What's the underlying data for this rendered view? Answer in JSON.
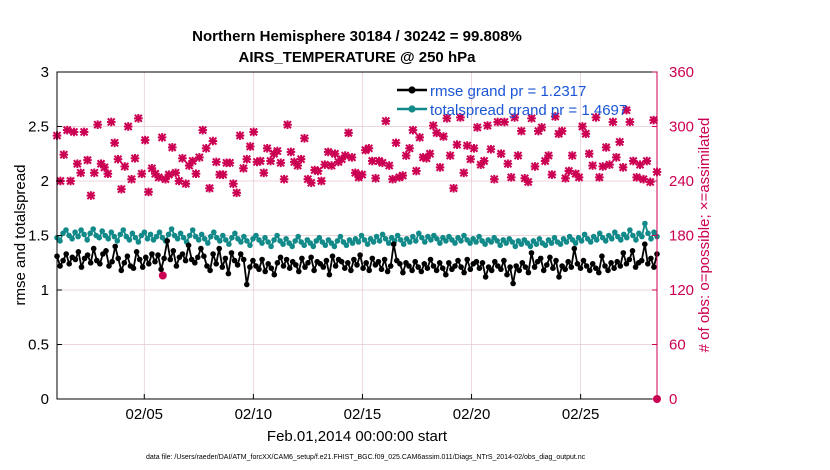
{
  "chart_data": {
    "type": "line",
    "title_line1": "Northern Hemisphere 30184 / 30242 = 99.808%",
    "title_line2": "AIRS_TEMPERATURE @ 250 hPa",
    "xlabel": "Feb.01,2014 00:00:00 start",
    "ylabel_left": "rmse and totalspread",
    "ylabel_right": "# of obs: o=possible; ×=assimilated",
    "footer": "data file: /Users/raeder/DAI/ATM_forcXX/CAM6_setup/f.e21.FHIST_BGC.f09_025.CAM6assim.011/Diags_NTrS_2014-02/obs_diag_output.nc",
    "x_range_days": [
      1,
      28.5
    ],
    "x_ticks": [
      {
        "label": "02/05",
        "day": 5
      },
      {
        "label": "02/10",
        "day": 10
      },
      {
        "label": "02/15",
        "day": 15
      },
      {
        "label": "02/20",
        "day": 20
      },
      {
        "label": "02/25",
        "day": 25
      }
    ],
    "ylim_left": [
      0,
      3
    ],
    "y_ticks_left": [
      "0",
      "0.5",
      "1",
      "1.5",
      "2",
      "2.5",
      "3"
    ],
    "ylim_right": [
      0,
      360
    ],
    "y_ticks_right": [
      "0",
      "60",
      "120",
      "180",
      "240",
      "300",
      "360"
    ],
    "legend": [
      {
        "name": "rmse grand pr = 1.2317",
        "color": "#000000"
      },
      {
        "name": "totalspread grand pr = 1.4697",
        "color": "#138a8a"
      }
    ],
    "colors": {
      "rmse": "#000000",
      "spread": "#138a8a",
      "obs": "#cc0052",
      "grid": "#e6c8cf"
    },
    "series_rmse": [
      1.31,
      1.22,
      1.27,
      1.33,
      1.24,
      1.3,
      1.28,
      1.35,
      1.21,
      1.29,
      1.32,
      1.25,
      1.38,
      1.27,
      1.24,
      1.33,
      1.36,
      1.22,
      1.26,
      1.4,
      1.29,
      1.18,
      1.25,
      1.31,
      1.22,
      1.2,
      1.35,
      1.28,
      1.21,
      1.3,
      1.24,
      1.33,
      1.26,
      1.32,
      1.19,
      1.29,
      1.45,
      1.28,
      1.36,
      1.22,
      1.3,
      1.33,
      1.27,
      1.41,
      1.28,
      1.25,
      1.3,
      1.38,
      1.31,
      1.22,
      1.18,
      1.33,
      1.24,
      1.38,
      1.21,
      1.29,
      1.15,
      1.34,
      1.27,
      1.23,
      1.33,
      1.28,
      1.05,
      1.21,
      1.27,
      1.22,
      1.19,
      1.28,
      1.17,
      1.24,
      1.2,
      1.14,
      1.25,
      1.3,
      1.22,
      1.28,
      1.2,
      1.26,
      1.23,
      1.17,
      1.29,
      1.21,
      1.25,
      1.3,
      1.18,
      1.26,
      1.24,
      1.21,
      1.27,
      1.14,
      1.31,
      1.22,
      1.28,
      1.26,
      1.2,
      1.25,
      1.18,
      1.28,
      1.23,
      1.32,
      1.2,
      1.25,
      1.18,
      1.29,
      1.23,
      1.26,
      1.19,
      1.28,
      1.17,
      1.22,
      1.42,
      1.27,
      1.24,
      1.16,
      1.25,
      1.22,
      1.18,
      1.26,
      1.21,
      1.17,
      1.24,
      1.2,
      1.28,
      1.22,
      1.18,
      1.25,
      1.2,
      1.14,
      1.25,
      1.19,
      1.22,
      1.27,
      1.21,
      1.16,
      1.28,
      1.19,
      1.24,
      1.26,
      1.2,
      1.25,
      1.12,
      1.21,
      1.18,
      1.26,
      1.22,
      1.19,
      1.27,
      1.14,
      1.21,
      1.06,
      1.22,
      1.18,
      1.25,
      1.21,
      1.16,
      1.34,
      1.21,
      1.26,
      1.29,
      1.18,
      1.23,
      1.3,
      1.2,
      1.27,
      1.12,
      1.22,
      1.19,
      1.26,
      1.21,
      1.38,
      1.24,
      1.2,
      1.27,
      1.22,
      1.18,
      1.24,
      1.2,
      1.16,
      1.31,
      1.22,
      1.18,
      1.25,
      1.2,
      1.26,
      1.22,
      1.34,
      1.24,
      1.28,
      1.36,
      1.21,
      1.25,
      1.27,
      1.42,
      1.24,
      1.29,
      1.21,
      1.33
    ],
    "series_spread": [
      1.48,
      1.45,
      1.52,
      1.55,
      1.5,
      1.47,
      1.53,
      1.49,
      1.55,
      1.51,
      1.46,
      1.52,
      1.56,
      1.5,
      1.48,
      1.54,
      1.5,
      1.47,
      1.53,
      1.49,
      1.45,
      1.51,
      1.55,
      1.49,
      1.46,
      1.52,
      1.48,
      1.44,
      1.5,
      1.53,
      1.47,
      1.51,
      1.46,
      1.49,
      1.53,
      1.48,
      1.45,
      1.51,
      1.56,
      1.5,
      1.47,
      1.52,
      1.48,
      1.44,
      1.5,
      1.55,
      1.49,
      1.46,
      1.51,
      1.47,
      1.43,
      1.49,
      1.53,
      1.48,
      1.45,
      1.5,
      1.46,
      1.42,
      1.48,
      1.52,
      1.47,
      1.44,
      1.49,
      1.45,
      1.41,
      1.47,
      1.5,
      1.46,
      1.43,
      1.48,
      1.44,
      1.4,
      1.46,
      1.5,
      1.45,
      1.42,
      1.47,
      1.43,
      1.4,
      1.45,
      1.49,
      1.44,
      1.41,
      1.46,
      1.43,
      1.4,
      1.45,
      1.48,
      1.44,
      1.41,
      1.46,
      1.43,
      1.4,
      1.45,
      1.49,
      1.44,
      1.41,
      1.46,
      1.43,
      1.47,
      1.44,
      1.5,
      1.46,
      1.42,
      1.47,
      1.44,
      1.49,
      1.45,
      1.51,
      1.47,
      1.43,
      1.48,
      1.45,
      1.5,
      1.46,
      1.42,
      1.47,
      1.44,
      1.49,
      1.45,
      1.52,
      1.48,
      1.44,
      1.49,
      1.46,
      1.5,
      1.47,
      1.43,
      1.48,
      1.45,
      1.49,
      1.46,
      1.43,
      1.48,
      1.45,
      1.5,
      1.46,
      1.43,
      1.47,
      1.44,
      1.49,
      1.45,
      1.42,
      1.46,
      1.44,
      1.48,
      1.45,
      1.41,
      1.46,
      1.43,
      1.47,
      1.44,
      1.4,
      1.45,
      1.42,
      1.46,
      1.43,
      1.4,
      1.45,
      1.42,
      1.47,
      1.43,
      1.41,
      1.46,
      1.43,
      1.48,
      1.44,
      1.42,
      1.47,
      1.44,
      1.49,
      1.46,
      1.43,
      1.48,
      1.45,
      1.51,
      1.47,
      1.44,
      1.49,
      1.46,
      1.52,
      1.48,
      1.45,
      1.5,
      1.47,
      1.53,
      1.49,
      1.46,
      1.51,
      1.48,
      1.55,
      1.5,
      1.46,
      1.52,
      1.49,
      1.61,
      1.52,
      1.47,
      1.53,
      1.49
    ],
    "obs_assimilated": [
      290,
      240,
      269,
      296,
      240,
      294,
      259,
      249,
      294,
      263,
      224,
      249,
      302,
      259,
      255,
      248,
      305,
      282,
      264,
      231,
      256,
      300,
      242,
      265,
      309,
      248,
      285,
      228,
      254,
      248,
      244,
      288,
      242,
      247,
      277,
      249,
      240,
      265,
      237,
      257,
      262,
      248,
      266,
      296,
      276,
      232,
      284,
      261,
      247,
      247,
      260,
      260,
      237,
      227,
      290,
      254,
      264,
      278,
      294,
      261,
      262,
      249,
      276,
      262,
      270,
      273,
      260,
      242,
      302,
      272,
      261,
      257,
      264,
      287,
      242,
      238,
      252,
      251,
      240,
      258,
      272,
      257,
      270,
      261,
      264,
      268,
      293,
      266,
      249,
      244,
      247,
      274,
      276,
      262,
      243,
      262,
      260,
      306,
      257,
      242,
      282,
      244,
      246,
      268,
      276,
      296,
      251,
      288,
      266,
      265,
      270,
      301,
      293,
      255,
      289,
      309,
      268,
      232,
      280,
      310,
      249,
      279,
      264,
      276,
      299,
      258,
      262,
      301,
      275,
      242,
      305,
      270,
      305,
      259,
      244,
      310,
      268,
      295,
      243,
      239,
      309,
      256,
      295,
      299,
      262,
      268,
      247,
      311,
      292,
      295,
      243,
      251,
      268,
      248,
      244,
      300,
      292,
      270,
      257,
      310,
      244,
      256,
      277,
      258,
      305,
      266,
      283,
      255,
      318,
      305,
      262,
      244,
      258,
      242,
      262,
      239,
      307,
      250
    ],
    "obs_possible": [
      {
        "day": 5.85,
        "count": 136
      },
      {
        "day": 28.5,
        "count": 0
      }
    ]
  }
}
